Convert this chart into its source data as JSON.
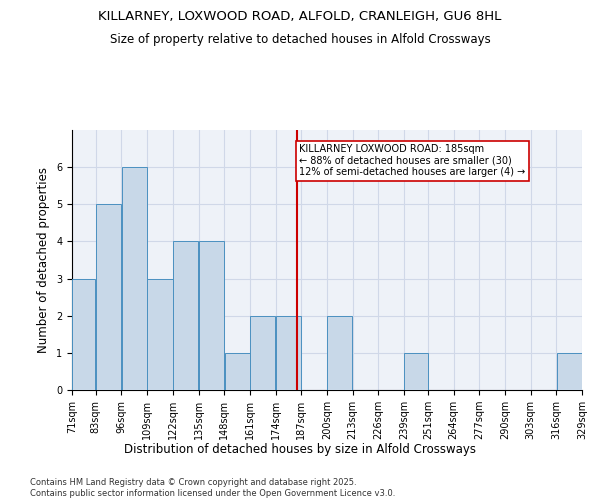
{
  "title1": "KILLARNEY, LOXWOOD ROAD, ALFOLD, CRANLEIGH, GU6 8HL",
  "title2": "Size of property relative to detached houses in Alfold Crossways",
  "xlabel": "Distribution of detached houses by size in Alfold Crossways",
  "ylabel": "Number of detached properties",
  "footnote1": "Contains HM Land Registry data © Crown copyright and database right 2025.",
  "footnote2": "Contains public sector information licensed under the Open Government Licence v3.0.",
  "annotation_line1": "KILLARNEY LOXWOOD ROAD: 185sqm",
  "annotation_line2": "← 88% of detached houses are smaller (30)",
  "annotation_line3": "12% of semi-detached houses are larger (4) →",
  "bar_color": "#c8d8e8",
  "bar_edge_color": "#4a90c0",
  "ref_line_color": "#cc0000",
  "ref_line_x": 185,
  "bin_edges": [
    71,
    83,
    96,
    109,
    122,
    135,
    148,
    161,
    174,
    187,
    200,
    213,
    226,
    239,
    251,
    264,
    277,
    290,
    303,
    316,
    329
  ],
  "bar_values": [
    3,
    5,
    6,
    3,
    4,
    4,
    1,
    2,
    2,
    0,
    2,
    0,
    0,
    1,
    0,
    0,
    0,
    0,
    0,
    1
  ],
  "ylim": [
    0,
    7
  ],
  "yticks": [
    0,
    1,
    2,
    3,
    4,
    5,
    6
  ],
  "grid_color": "#d0d8e8",
  "bg_color": "#eef2f8",
  "title_fontsize": 9.5,
  "subtitle_fontsize": 8.5,
  "axis_label_fontsize": 8.5,
  "tick_fontsize": 7,
  "footnote_fontsize": 6,
  "annotation_fontsize": 7
}
